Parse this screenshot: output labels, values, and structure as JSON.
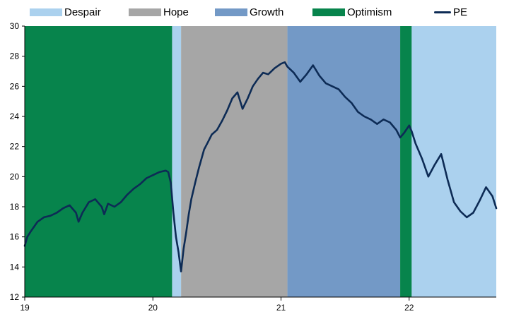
{
  "chart_data": {
    "type": "line",
    "title": "",
    "xlabel": "",
    "ylabel": "",
    "ylim": [
      12,
      30
    ],
    "xlim": [
      19,
      22.68
    ],
    "x_ticks": [
      "19",
      "20",
      "21",
      "22"
    ],
    "y_ticks": [
      "12",
      "14",
      "16",
      "18",
      "20",
      "22",
      "24",
      "26",
      "28",
      "30"
    ],
    "grid": false,
    "legend_position": "top",
    "phases": [
      {
        "name": "Optimism",
        "start": 19.0,
        "end": 20.15
      },
      {
        "name": "Despair",
        "start": 20.15,
        "end": 20.22
      },
      {
        "name": "Hope",
        "start": 20.22,
        "end": 21.05
      },
      {
        "name": "Growth",
        "start": 21.05,
        "end": 21.93
      },
      {
        "name": "Optimism",
        "start": 21.93,
        "end": 22.02
      },
      {
        "name": "Despair",
        "start": 22.02,
        "end": 22.68
      }
    ],
    "phase_colors": {
      "Despair": "#abd1ee",
      "Hope": "#a6a6a6",
      "Growth": "#7399c6",
      "Optimism": "#07844c"
    },
    "legend": [
      {
        "label": "Despair",
        "kind": "area",
        "color": "#abd1ee"
      },
      {
        "label": "Hope",
        "kind": "area",
        "color": "#a6a6a6"
      },
      {
        "label": "Growth",
        "kind": "area",
        "color": "#7399c6"
      },
      {
        "label": "Optimism",
        "kind": "area",
        "color": "#07844c"
      },
      {
        "label": "PE",
        "kind": "line",
        "color": "#0d2b55"
      }
    ],
    "series": [
      {
        "name": "PE",
        "color": "#0d2b55",
        "x": [
          19.0,
          19.02,
          19.05,
          19.1,
          19.15,
          19.2,
          19.25,
          19.3,
          19.35,
          19.4,
          19.42,
          19.45,
          19.5,
          19.55,
          19.6,
          19.62,
          19.65,
          19.7,
          19.75,
          19.8,
          19.85,
          19.9,
          19.95,
          20.0,
          20.05,
          20.1,
          20.12,
          20.14,
          20.16,
          20.18,
          20.2,
          20.22,
          20.24,
          20.26,
          20.28,
          20.3,
          20.33,
          20.36,
          20.4,
          20.43,
          20.46,
          20.5,
          20.54,
          20.58,
          20.62,
          20.66,
          20.7,
          20.74,
          20.78,
          20.82,
          20.86,
          20.9,
          20.95,
          21.0,
          21.03,
          21.05,
          21.1,
          21.15,
          21.2,
          21.25,
          21.3,
          21.35,
          21.4,
          21.45,
          21.5,
          21.55,
          21.6,
          21.65,
          21.7,
          21.75,
          21.8,
          21.85,
          21.9,
          21.93,
          21.96,
          22.0,
          22.02,
          22.05,
          22.1,
          22.15,
          22.2,
          22.25,
          22.3,
          22.35,
          22.4,
          22.45,
          22.5,
          22.55,
          22.6,
          22.65,
          22.68
        ],
        "values": [
          15.4,
          16.0,
          16.4,
          17.0,
          17.3,
          17.4,
          17.6,
          17.9,
          18.1,
          17.6,
          17.0,
          17.6,
          18.3,
          18.5,
          18.0,
          17.5,
          18.2,
          18.0,
          18.3,
          18.8,
          19.2,
          19.5,
          19.9,
          20.1,
          20.3,
          20.4,
          20.3,
          19.6,
          17.6,
          16.0,
          15.0,
          13.7,
          15.2,
          16.3,
          17.5,
          18.5,
          19.6,
          20.6,
          21.8,
          22.3,
          22.8,
          23.1,
          23.7,
          24.4,
          25.2,
          25.6,
          24.5,
          25.2,
          26.0,
          26.5,
          26.9,
          26.8,
          27.2,
          27.5,
          27.6,
          27.3,
          26.9,
          26.3,
          26.8,
          27.4,
          26.7,
          26.2,
          26.0,
          25.8,
          25.3,
          24.9,
          24.3,
          24.0,
          23.8,
          23.5,
          23.8,
          23.6,
          23.1,
          22.6,
          22.9,
          23.4,
          23.0,
          22.2,
          21.2,
          20.0,
          20.8,
          21.5,
          19.8,
          18.3,
          17.7,
          17.3,
          17.6,
          18.4,
          19.3,
          18.7,
          17.9
        ]
      }
    ]
  }
}
